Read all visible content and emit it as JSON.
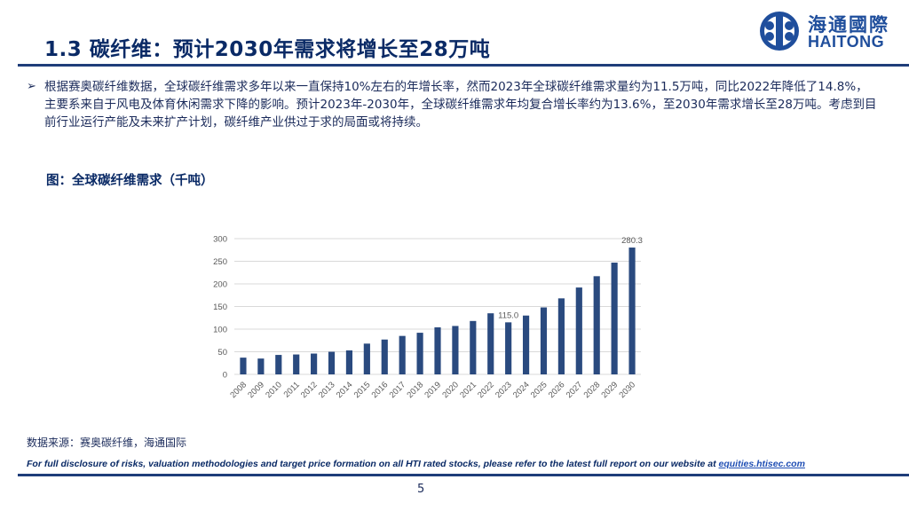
{
  "slide": {
    "title": "1.3 碳纤维：预计2030年需求将增长至28万吨",
    "logo_cn": "海通國際",
    "logo_en": "HAITONG",
    "bullet_symbol": "➢",
    "bullet": "根据赛奥碳纤维数据，全球碳纤维需求多年以来一直保持10%左右的年增长率，然而2023年全球碳纤维需求量约为11.5万吨，同比2022年降低了14.8%，主要系来自于风电及体育休闲需求下降的影响。预计2023年-2030年，全球碳纤维需求年均复合增长率约为13.6%，至2030年需求增长至28万吨。考虑到目前行业运行产能及未来扩产计划，碳纤维产业供过于求的局面或将持续。",
    "figure_title": "图：全球碳纤维需求（千吨）",
    "source": "数据来源：赛奥碳纤维，海通国际",
    "disclaimer_text": "For full disclosure of risks, valuation methodologies and target price formation on all HTI rated stocks, please refer to the latest full report on our website at ",
    "disclaimer_link": "equities.htisec.com",
    "page_number": "5"
  },
  "colors": {
    "bar": "#2a4a7f",
    "title": "#0a2a66",
    "brand": "#1f4e9c",
    "axis_text": "#595959",
    "gridline": "#d9d9d9"
  },
  "chart_data": {
    "type": "bar",
    "title": "全球碳纤维需求（千吨）",
    "categories": [
      "2008",
      "2009",
      "2010",
      "2011",
      "2012",
      "2013",
      "2014",
      "2015",
      "2016",
      "2017",
      "2018",
      "2019",
      "2020",
      "2021",
      "2022",
      "2023",
      "2024",
      "2025",
      "2026",
      "2027",
      "2028",
      "2029",
      "2030"
    ],
    "values": [
      37,
      35,
      43,
      44,
      46,
      50,
      53,
      68,
      77,
      85,
      92,
      104,
      107,
      118,
      135,
      115.0,
      130,
      148,
      168,
      192,
      217,
      247,
      280.3
    ],
    "data_labels": {
      "15": "115.0",
      "22": "280.3"
    },
    "ylim": [
      0,
      300
    ],
    "yticks": [
      0,
      50,
      100,
      150,
      200,
      250,
      300
    ],
    "xlabel": "",
    "ylabel": "",
    "grid": true,
    "legend": "none"
  }
}
